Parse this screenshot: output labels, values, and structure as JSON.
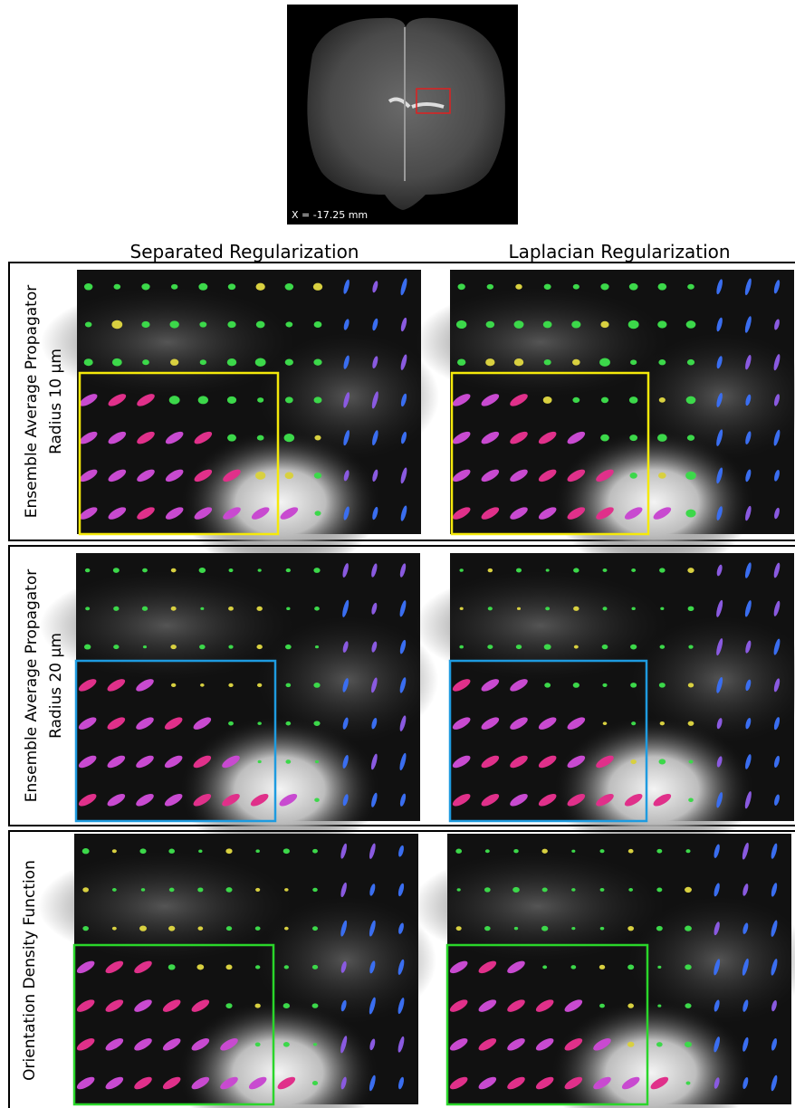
{
  "image": {
    "label": "X = -17.25 mm"
  },
  "columns": [
    "Separated Regularization",
    "Laplacian Regularization"
  ],
  "rows": [
    {
      "label_lines": [
        "Ensemble Average Propagator",
        "Radius 10 µm"
      ]
    },
    {
      "label_lines": [
        "Ensemble Average Propagator",
        "Radius 20 µm"
      ]
    },
    {
      "label_lines": [
        "Orientation Density Function"
      ]
    }
  ]
}
